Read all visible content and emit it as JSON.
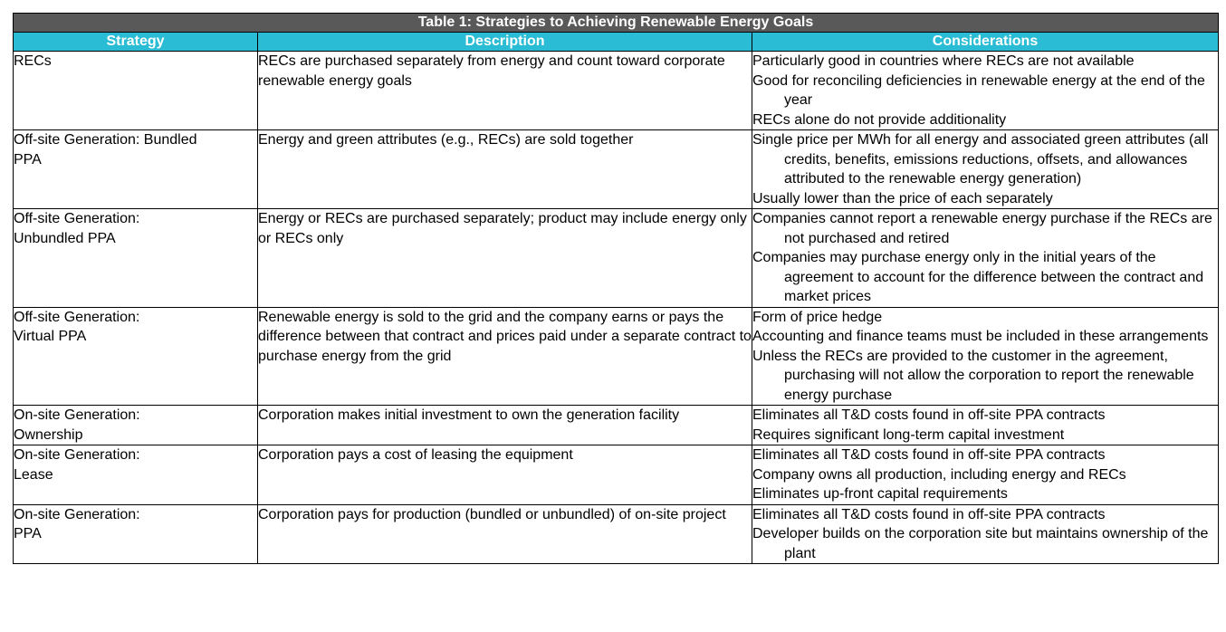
{
  "colors": {
    "title_bg": "#595959",
    "header_bg": "#29BCD4",
    "header_text": "#FFFFFF",
    "border": "#000000"
  },
  "table": {
    "title": "Table 1: Strategies to Achieving Renewable Energy Goals",
    "columns": [
      "Strategy",
      "Description",
      "Considerations"
    ],
    "rows": [
      {
        "strategy_lines": [
          "RECs"
        ],
        "description": "RECs are purchased separately from energy and count toward corporate renewable energy goals",
        "considerations": [
          "Particularly good in countries where RECs are not available",
          "Good for reconciling deficiencies in renewable energy at the end of the year",
          "RECs alone do not provide additionality"
        ]
      },
      {
        "strategy_lines": [
          "Off-site Generation: Bundled",
          "PPA"
        ],
        "description": "Energy and green attributes (e.g., RECs) are sold together",
        "considerations": [
          "Single price per MWh for all energy and associated green attributes (all credits, benefits, emissions reductions, offsets, and allowances attributed to the renewable energy generation)",
          "Usually lower than the price of each separately"
        ]
      },
      {
        "strategy_lines": [
          "Off-site Generation:",
          "Unbundled PPA"
        ],
        "description": "Energy or RECs are purchased separately; product may include energy only or RECs only",
        "considerations": [
          "Companies cannot report a renewable energy purchase if the RECs are not purchased and retired",
          "Companies may purchase energy only in the initial years of the agreement to account for the difference between the contract and market prices"
        ]
      },
      {
        "strategy_lines": [
          "Off-site Generation:",
          "Virtual PPA"
        ],
        "description": "Renewable energy is sold to the grid and the company earns or pays the difference between that contract and prices paid under a separate contract to purchase energy from the grid",
        "considerations": [
          "Form of price hedge",
          "Accounting and finance teams must be included in these arrangements",
          "Unless the RECs are provided to the customer in the agreement, purchasing will not allow the corporation to report the renewable energy purchase"
        ]
      },
      {
        "strategy_lines": [
          "On-site Generation:",
          "Ownership"
        ],
        "description": "Corporation makes initial investment to own the generation facility",
        "considerations": [
          "Eliminates all T&D costs found in off-site PPA contracts",
          "Requires significant long-term capital investment"
        ]
      },
      {
        "strategy_lines": [
          "On-site Generation:",
          "Lease"
        ],
        "description": "Corporation pays a cost of leasing the equipment",
        "considerations": [
          "Eliminates all T&D costs found in off-site PPA contracts",
          "Company owns all production, including energy and RECs",
          "Eliminates up-front capital requirements"
        ]
      },
      {
        "strategy_lines": [
          "On-site Generation:",
          "PPA"
        ],
        "description": "Corporation pays for production (bundled or unbundled) of on-site project",
        "considerations": [
          "Eliminates all T&D costs found in off-site PPA contracts",
          "Developer builds on the corporation site but maintains ownership of the plant"
        ]
      }
    ]
  }
}
